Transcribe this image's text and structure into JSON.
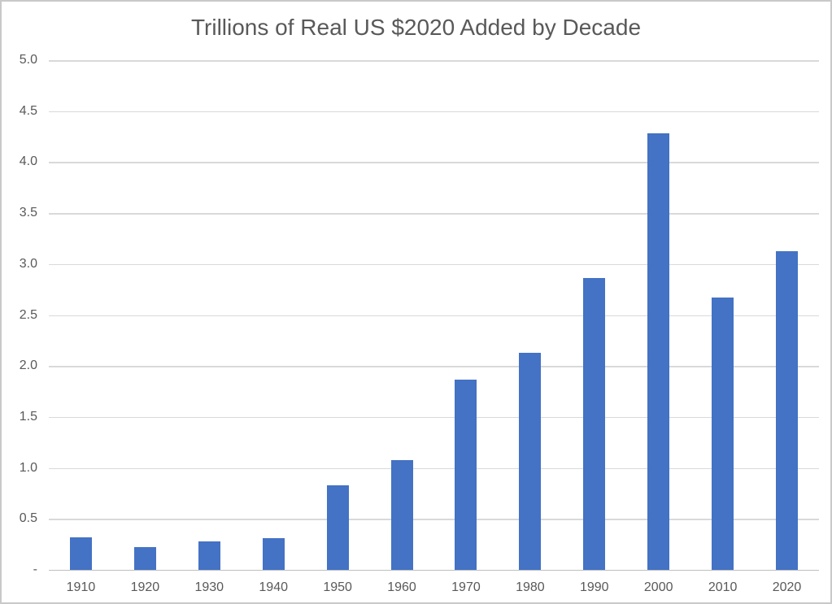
{
  "chart_data": {
    "type": "bar",
    "title": "Trillions of Real US $2020 Added by Decade",
    "categories": [
      "1910",
      "1920",
      "1930",
      "1940",
      "1950",
      "1960",
      "1970",
      "1980",
      "1990",
      "2000",
      "2010",
      "2020"
    ],
    "values": [
      0.32,
      0.22,
      0.28,
      0.31,
      0.83,
      1.08,
      1.87,
      2.13,
      2.86,
      4.28,
      2.67,
      3.13
    ],
    "xlabel": "",
    "ylabel": "",
    "ylim": [
      0,
      5
    ],
    "ytick_step": 0.5,
    "ytick_labels_top_to_bottom": [
      "5.0",
      "4.5",
      "4.0",
      "3.5",
      "3.0",
      "2.5",
      "2.0",
      "1.5",
      "1.0",
      "0.5",
      "-"
    ],
    "zero_tick_label": "-",
    "grid": "horizontal",
    "legend": "none",
    "colors": {
      "bar": "#4472C4",
      "gridline": "#D9D9D9",
      "axis_line": "#BFBFBF",
      "text": "#595959",
      "title_text": "#595959",
      "background": "#FFFFFF",
      "frame_border": "#C9C9C9"
    }
  }
}
